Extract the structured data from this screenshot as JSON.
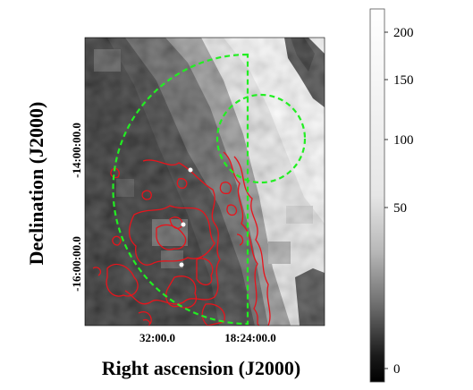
{
  "figure": {
    "xlabel": "Right ascension (J2000)",
    "ylabel": "Declination (J2000)",
    "x_ticks": [
      "32:00.0",
      "18:24:00.0"
    ],
    "y_ticks": [
      "-14:00:00.0",
      "-16:00:00.0"
    ]
  },
  "colorbar": {
    "labels": [
      "200",
      "150",
      "100",
      "50",
      "0"
    ]
  },
  "colors": {
    "contour": "#e8141c",
    "region": "#22ee22",
    "source_marker": "#ffffff"
  }
}
